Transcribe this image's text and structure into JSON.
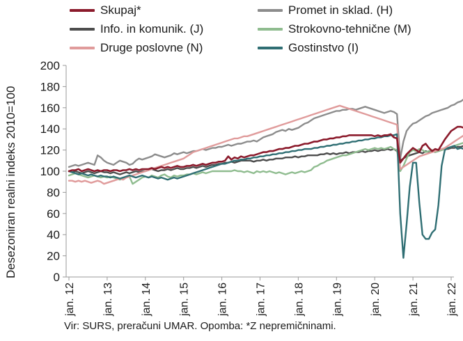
{
  "chart_data": {
    "type": "line",
    "title": "",
    "ylabel": "Desezoniran realni indeks 2010=100",
    "xlabel": "",
    "ylim": [
      0,
      200
    ],
    "yticks": [
      0,
      20,
      40,
      60,
      80,
      100,
      120,
      140,
      160,
      180,
      200
    ],
    "x_start_year": 2012,
    "x_tick_labels": [
      "jan. 12",
      "jan. 13",
      "jan. 14",
      "jan. 15",
      "jan. 16",
      "jan. 17",
      "jan. 18",
      "jan. 19",
      "jan. 20",
      "jan. 21",
      "jan. 22"
    ],
    "grid": false,
    "legend_position": "top",
    "series": [
      {
        "name": "Skupaj*",
        "color": "#8b1a2b",
        "values": [
          100,
          101,
          101,
          102,
          100,
          101,
          102,
          101,
          100,
          101,
          100,
          101,
          101,
          100,
          101,
          101,
          100,
          101,
          101,
          102,
          101,
          102,
          101,
          102,
          102,
          102,
          103,
          102,
          103,
          104,
          103,
          104,
          103,
          104,
          105,
          104,
          104,
          105,
          105,
          106,
          105,
          106,
          107,
          106,
          107,
          108,
          108,
          109,
          109,
          110,
          114,
          111,
          113,
          112,
          114,
          113,
          114,
          115,
          115,
          116,
          117,
          118,
          118,
          119,
          119,
          120,
          121,
          121,
          122,
          122,
          123,
          124,
          124,
          125,
          126,
          126,
          127,
          128,
          128,
          129,
          130,
          130,
          131,
          131,
          132,
          132,
          133,
          133,
          134,
          134,
          134,
          134,
          134,
          134,
          134,
          134,
          133,
          134,
          133,
          134,
          134,
          135,
          132,
          131,
          108,
          112,
          116,
          119,
          122,
          120,
          118,
          124,
          126,
          122,
          119,
          121,
          120,
          125,
          130,
          134,
          138,
          140,
          142,
          142,
          141,
          143,
          140,
          142,
          146
        ]
      },
      {
        "name": "Promet in sklad. (H)",
        "color": "#8c8c8c",
        "values": [
          104,
          105,
          106,
          105,
          106,
          107,
          108,
          107,
          106,
          115,
          113,
          110,
          108,
          107,
          106,
          108,
          110,
          109,
          108,
          106,
          107,
          110,
          112,
          111,
          112,
          113,
          114,
          116,
          115,
          114,
          113,
          114,
          115,
          117,
          116,
          117,
          118,
          117,
          118,
          119,
          119,
          120,
          121,
          120,
          121,
          122,
          122,
          123,
          123,
          124,
          125,
          124,
          125,
          126,
          126,
          127,
          128,
          128,
          129,
          128,
          130,
          132,
          133,
          134,
          135,
          137,
          138,
          139,
          138,
          140,
          139,
          140,
          141,
          143,
          145,
          146,
          148,
          150,
          151,
          152,
          153,
          154,
          155,
          156,
          157,
          157,
          158,
          158,
          159,
          159,
          158,
          159,
          160,
          161,
          160,
          159,
          158,
          157,
          156,
          155,
          156,
          157,
          156,
          154,
          112,
          128,
          138,
          142,
          145,
          146,
          148,
          150,
          152,
          153,
          155,
          156,
          157,
          158,
          159,
          160,
          162,
          163,
          165,
          166,
          168,
          170,
          173,
          168,
          171
        ]
      },
      {
        "name": "Info. in komunik. (J)",
        "color": "#4d4d4d",
        "values": [
          100,
          99,
          100,
          99,
          98,
          99,
          100,
          99,
          98,
          99,
          100,
          99,
          99,
          98,
          99,
          98,
          97,
          98,
          99,
          98,
          99,
          100,
          99,
          100,
          100,
          101,
          102,
          101,
          100,
          101,
          101,
          102,
          101,
          102,
          103,
          102,
          102,
          103,
          103,
          104,
          103,
          104,
          105,
          104,
          105,
          106,
          106,
          107,
          107,
          108,
          108,
          109,
          108,
          109,
          110,
          110,
          110,
          110,
          109,
          110,
          110,
          111,
          110,
          111,
          111,
          112,
          112,
          112,
          113,
          113,
          113,
          114,
          113,
          114,
          114,
          115,
          115,
          115,
          115,
          116,
          116,
          117,
          116,
          117,
          116,
          117,
          117,
          118,
          117,
          118,
          118,
          118,
          119,
          118,
          119,
          119,
          120,
          119,
          120,
          120,
          121,
          120,
          121,
          119,
          110,
          112,
          114,
          115,
          116,
          117,
          118,
          117,
          119,
          118,
          119,
          118,
          119,
          120,
          121,
          121,
          122,
          122,
          123,
          123,
          124,
          124,
          125,
          126,
          127
        ]
      },
      {
        "name": "Strokovno-tehnične (M)",
        "color": "#8fbc8f",
        "values": [
          96,
          97,
          98,
          97,
          96,
          95,
          94,
          95,
          96,
          95,
          94,
          95,
          94,
          95,
          94,
          93,
          92,
          93,
          94,
          95,
          88,
          90,
          92,
          94,
          95,
          94,
          96,
          95,
          94,
          96,
          97,
          95,
          94,
          96,
          95,
          96,
          96,
          97,
          97,
          98,
          97,
          98,
          99,
          98,
          99,
          100,
          100,
          100,
          100,
          100,
          100,
          100,
          101,
          100,
          100,
          99,
          100,
          99,
          98,
          100,
          99,
          100,
          99,
          100,
          99,
          98,
          99,
          98,
          97,
          98,
          99,
          98,
          99,
          100,
          99,
          100,
          101,
          104,
          105,
          107,
          108,
          110,
          111,
          112,
          113,
          114,
          115,
          115,
          116,
          117,
          118,
          119,
          120,
          121,
          120,
          121,
          122,
          121,
          122,
          121,
          122,
          123,
          121,
          120,
          100,
          105,
          112,
          118,
          120,
          119,
          121,
          120,
          118,
          119,
          120,
          118,
          119,
          120,
          121,
          122,
          123,
          124,
          125,
          126,
          127,
          128,
          129,
          130,
          131
        ]
      },
      {
        "name": "Druge poslovne (N)",
        "color": "#e09b9b",
        "values": [
          91,
          91,
          90,
          91,
          90,
          91,
          90,
          89,
          90,
          91,
          90,
          88,
          89,
          90,
          91,
          92,
          93,
          92,
          94,
          95,
          96,
          97,
          98,
          99,
          100,
          101,
          102,
          103,
          104,
          105,
          106,
          107,
          108,
          109,
          110,
          111,
          112,
          114,
          116,
          118,
          119,
          120,
          121,
          122,
          123,
          124,
          125,
          126,
          127,
          128,
          129,
          130,
          131,
          131,
          132,
          133,
          133,
          134,
          135,
          136,
          137,
          138,
          139,
          140,
          141,
          142,
          143,
          144,
          145,
          146,
          147,
          148,
          149,
          150,
          151,
          152,
          153,
          154,
          155,
          156,
          157,
          158,
          159,
          160,
          161,
          162,
          161,
          160,
          159,
          158,
          157,
          156,
          155,
          154,
          153,
          152,
          151,
          150,
          149,
          148,
          147,
          146,
          145,
          144,
          102,
          104,
          106,
          108,
          110,
          112,
          114,
          115,
          116,
          117,
          118,
          119,
          120,
          121,
          122,
          124,
          126,
          128,
          130,
          132,
          134,
          136,
          138,
          140,
          137
        ]
      },
      {
        "name": "Gostinstvo (I)",
        "color": "#2f6e73",
        "values": [
          100,
          99,
          98,
          97,
          98,
          97,
          96,
          97,
          96,
          95,
          96,
          95,
          95,
          94,
          95,
          94,
          93,
          94,
          95,
          96,
          95,
          94,
          95,
          96,
          95,
          94,
          95,
          94,
          93,
          94,
          93,
          92,
          93,
          94,
          93,
          94,
          95,
          96,
          97,
          98,
          99,
          100,
          101,
          102,
          103,
          104,
          105,
          106,
          107,
          107,
          108,
          109,
          110,
          110,
          111,
          111,
          112,
          112,
          113,
          113,
          114,
          114,
          115,
          115,
          116,
          116,
          117,
          117,
          118,
          118,
          119,
          119,
          120,
          120,
          121,
          121,
          121,
          122,
          122,
          123,
          123,
          124,
          124,
          125,
          125,
          126,
          126,
          127,
          127,
          128,
          128,
          129,
          129,
          130,
          130,
          131,
          131,
          132,
          132,
          133,
          133,
          134,
          134,
          135,
          60,
          18,
          50,
          85,
          108,
          108,
          70,
          40,
          36,
          36,
          42,
          45,
          68,
          105,
          120,
          122,
          123,
          124,
          121,
          122,
          121,
          118,
          120,
          122,
          126
        ]
      }
    ]
  },
  "footnote": "Vir: SURS, preračuni UMAR. Opomba: *Z nepremičninami."
}
